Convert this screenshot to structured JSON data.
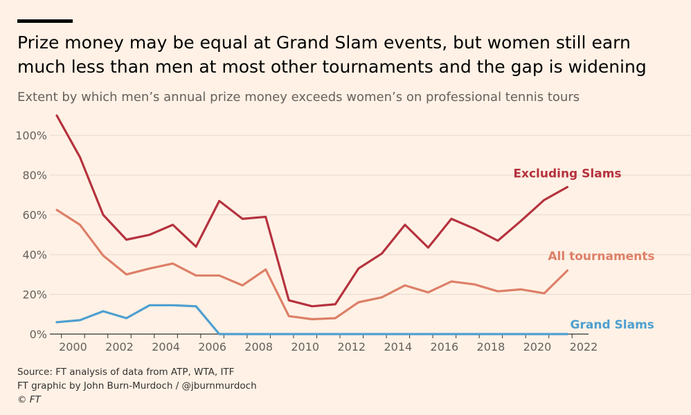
{
  "header": {
    "title": "Prize money may be equal at Grand Slam events, but women still earn much less than men at most other tournaments and the gap is widening",
    "subtitle": "Extent by which men’s annual prize money exceeds women’s on professional tennis tours"
  },
  "footer": {
    "source": "Source: FT analysis of data from ATP, WTA, ITF",
    "credit": "FT graphic by John Burn-Murdoch / @jburnmurdoch",
    "copyright": "© FT"
  },
  "chart_data": {
    "type": "line",
    "title": "Prize money may be equal at Grand Slam events, but women still earn much less than men at most other tournaments and the gap is widening",
    "subtitle": "Extent by which men’s annual prize money exceeds women’s on professional tennis tours",
    "xlabel": "",
    "ylabel": "",
    "xlim": [
      1999.3,
      2022
    ],
    "ylim": [
      0,
      110
    ],
    "x_ticks": [
      2000,
      2002,
      2004,
      2006,
      2008,
      2010,
      2012,
      2014,
      2016,
      2018,
      2020,
      2022
    ],
    "x_tick_labels": [
      "2000",
      "2002",
      "2004",
      "2006",
      "2008",
      "2010",
      "2012",
      "2014",
      "2016",
      "2018",
      "2020",
      "2022"
    ],
    "y_ticks": [
      0,
      20,
      40,
      60,
      80,
      100
    ],
    "y_tick_labels": [
      "0%",
      "20%",
      "40%",
      "60%",
      "80%",
      "100%"
    ],
    "grid": "horizontal",
    "legend": "direct labels at line ends",
    "series": [
      {
        "name": "Excluding Slams",
        "color": "#b5323e",
        "x": [
          1999.3,
          2000.3,
          2001.3,
          2002.3,
          2003.3,
          2004.3,
          2005.3,
          2006.3,
          2007.3,
          2008.3,
          2009.3,
          2010.3,
          2011.3,
          2012.3,
          2013.3,
          2014.3,
          2015.3,
          2016.3,
          2017.3,
          2018.3,
          2019.3,
          2020.3,
          2021.3
        ],
        "values": [
          110,
          89,
          60,
          47.5,
          50,
          55,
          44,
          67,
          58,
          59,
          17,
          14,
          15,
          33,
          40.5,
          55,
          43.5,
          58,
          53,
          47,
          57,
          67.5,
          74
        ]
      },
      {
        "name": "All tournaments",
        "color": "#dd7f68",
        "x": [
          1999.3,
          2000.3,
          2001.3,
          2002.3,
          2003.3,
          2004.3,
          2005.3,
          2006.3,
          2007.3,
          2008.3,
          2009.3,
          2010.3,
          2011.3,
          2012.3,
          2013.3,
          2014.3,
          2015.3,
          2016.3,
          2017.3,
          2018.3,
          2019.3,
          2020.3,
          2021.3
        ],
        "values": [
          62.5,
          55,
          39.5,
          30,
          33,
          35.5,
          29.5,
          29.5,
          24.5,
          32.5,
          9,
          7.5,
          8,
          16,
          18.5,
          24.5,
          21,
          26.5,
          25,
          21.5,
          22.5,
          20.5,
          32
        ]
      },
      {
        "name": "Grand Slams",
        "color": "#4e9fd0",
        "x": [
          1999.3,
          2000.3,
          2001.3,
          2002.3,
          2003.3,
          2004.3,
          2005.3,
          2006.3,
          2007.3,
          2008.3,
          2009.3,
          2010.3,
          2011.3,
          2012.3,
          2013.3,
          2014.3,
          2015.3,
          2016.3,
          2017.3,
          2018.3,
          2019.3,
          2020.3,
          2021.3
        ],
        "values": [
          6,
          7,
          11.5,
          8,
          14.5,
          14.5,
          14,
          0,
          0,
          0,
          0,
          0,
          0,
          0,
          0,
          0,
          0,
          0,
          0,
          0,
          0,
          0,
          0
        ]
      }
    ]
  }
}
